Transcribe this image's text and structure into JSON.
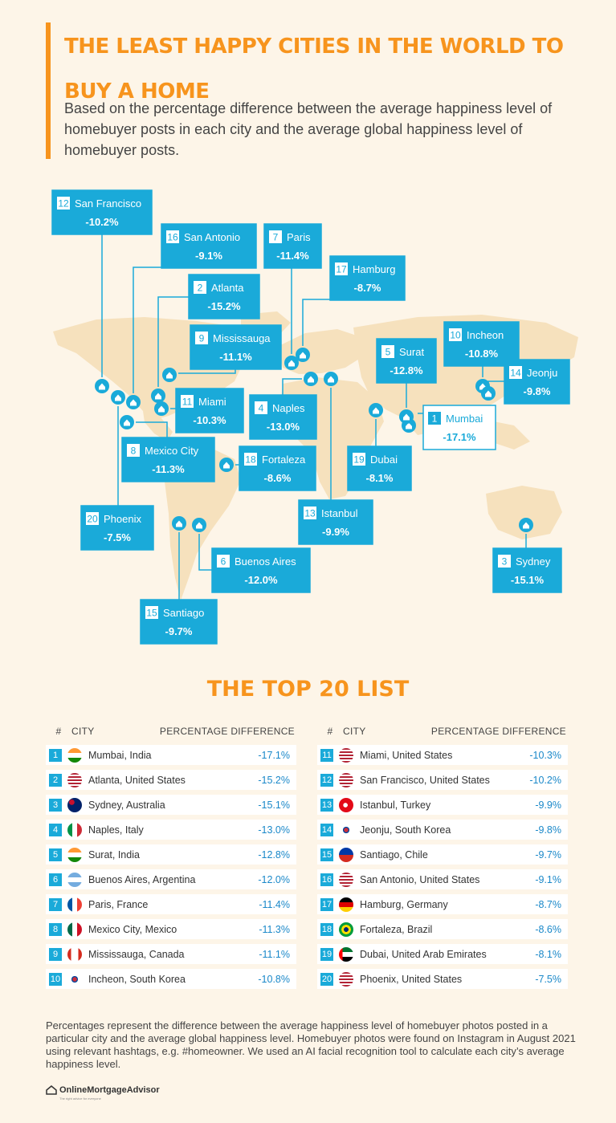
{
  "title": "THE LEAST HAPPY CITIES IN THE WORLD TO BUY A HOME",
  "subtitle": "Based on the percentage difference between the average happiness level of homebuyer posts in each city and the average global happiness level of homebuyer posts.",
  "colors": {
    "accent": "#f7941d",
    "blue": "#1aaad9",
    "background": "#fdf5e8",
    "continent": "#f6e1bd"
  },
  "chart_data": {
    "type": "table",
    "title": "THE TOP 20 LIST",
    "columns": [
      "#",
      "CITY",
      "PERCENTAGE DIFFERENCE"
    ],
    "rows": [
      {
        "rank": "1",
        "city": "Mumbai, India",
        "map_label": "Mumbai",
        "value": -17.1,
        "label": "-17.1%",
        "flag": "india-flag"
      },
      {
        "rank": "2",
        "city": "Atlanta, United States",
        "map_label": "Atlanta",
        "value": -15.2,
        "label": "-15.2%",
        "flag": "usa-flag"
      },
      {
        "rank": "3",
        "city": "Sydney, Australia",
        "map_label": "Sydney",
        "value": -15.1,
        "label": "-15.1%",
        "flag": "australia-flag"
      },
      {
        "rank": "4",
        "city": "Naples, Italy",
        "map_label": "Naples",
        "value": -13.0,
        "label": "-13.0%",
        "flag": "italy-flag"
      },
      {
        "rank": "5",
        "city": "Surat, India",
        "map_label": "Surat",
        "value": -12.8,
        "label": "-12.8%",
        "flag": "india-flag"
      },
      {
        "rank": "6",
        "city": "Buenos Aires, Argentina",
        "map_label": "Buenos Aires",
        "value": -12.0,
        "label": "-12.0%",
        "flag": "argentina-flag"
      },
      {
        "rank": "7",
        "city": "Paris, France",
        "map_label": "Paris",
        "value": -11.4,
        "label": "-11.4%",
        "flag": "france-flag"
      },
      {
        "rank": "8",
        "city": "Mexico City, Mexico",
        "map_label": "Mexico City",
        "value": -11.3,
        "label": "-11.3%",
        "flag": "mexico-flag"
      },
      {
        "rank": "9",
        "city": "Mississauga, Canada",
        "map_label": "Mississauga",
        "value": -11.1,
        "label": "-11.1%",
        "flag": "canada-flag"
      },
      {
        "rank": "10",
        "city": "Incheon, South Korea",
        "map_label": "Incheon",
        "value": -10.8,
        "label": "-10.8%",
        "flag": "south-korea-flag"
      },
      {
        "rank": "11",
        "city": "Miami, United States",
        "map_label": "Miami",
        "value": -10.3,
        "label": "-10.3%",
        "flag": "usa-flag"
      },
      {
        "rank": "12",
        "city": "San Francisco, United States",
        "map_label": "San Francisco",
        "value": -10.2,
        "label": "-10.2%",
        "flag": "usa-flag"
      },
      {
        "rank": "13",
        "city": "Istanbul, Turkey",
        "map_label": "Istanbul",
        "value": -9.9,
        "label": "-9.9%",
        "flag": "turkey-flag"
      },
      {
        "rank": "14",
        "city": "Jeonju, South Korea",
        "map_label": "Jeonju",
        "value": -9.8,
        "label": "-9.8%",
        "flag": "south-korea-flag"
      },
      {
        "rank": "15",
        "city": "Santiago, Chile",
        "map_label": "Santiago",
        "value": -9.7,
        "label": "-9.7%",
        "flag": "chile-flag"
      },
      {
        "rank": "16",
        "city": "San Antonio, United States",
        "map_label": "San Antonio",
        "value": -9.1,
        "label": "-9.1%",
        "flag": "usa-flag"
      },
      {
        "rank": "17",
        "city": "Hamburg, Germany",
        "map_label": "Hamburg",
        "value": -8.7,
        "label": "-8.7%",
        "flag": "germany-flag"
      },
      {
        "rank": "18",
        "city": "Fortaleza, Brazil",
        "map_label": "Fortaleza",
        "value": -8.6,
        "label": "-8.6%",
        "flag": "brazil-flag"
      },
      {
        "rank": "19",
        "city": "Dubai, United Arab Emirates",
        "map_label": "Dubai",
        "value": -8.1,
        "label": "-8.1%",
        "flag": "uae-flag"
      },
      {
        "rank": "20",
        "city": "Phoenix, United States",
        "map_label": "Phoenix",
        "value": -7.5,
        "label": "-7.5%",
        "flag": "usa-flag"
      }
    ]
  },
  "footnote": "Percentages represent the difference between the average happiness level of homebuyer photos posted in a particular city and the average global happiness level. Homebuyer photos were found on Instagram in August 2021 using relevant hashtags, e.g. #homeowner. We used an AI facial recognition tool to calculate each city’s average happiness level.",
  "logo": {
    "name": "OnlineMortgageAdvisor",
    "tagline": "The right advice for everyone",
    "icon": "house-logo-icon"
  }
}
